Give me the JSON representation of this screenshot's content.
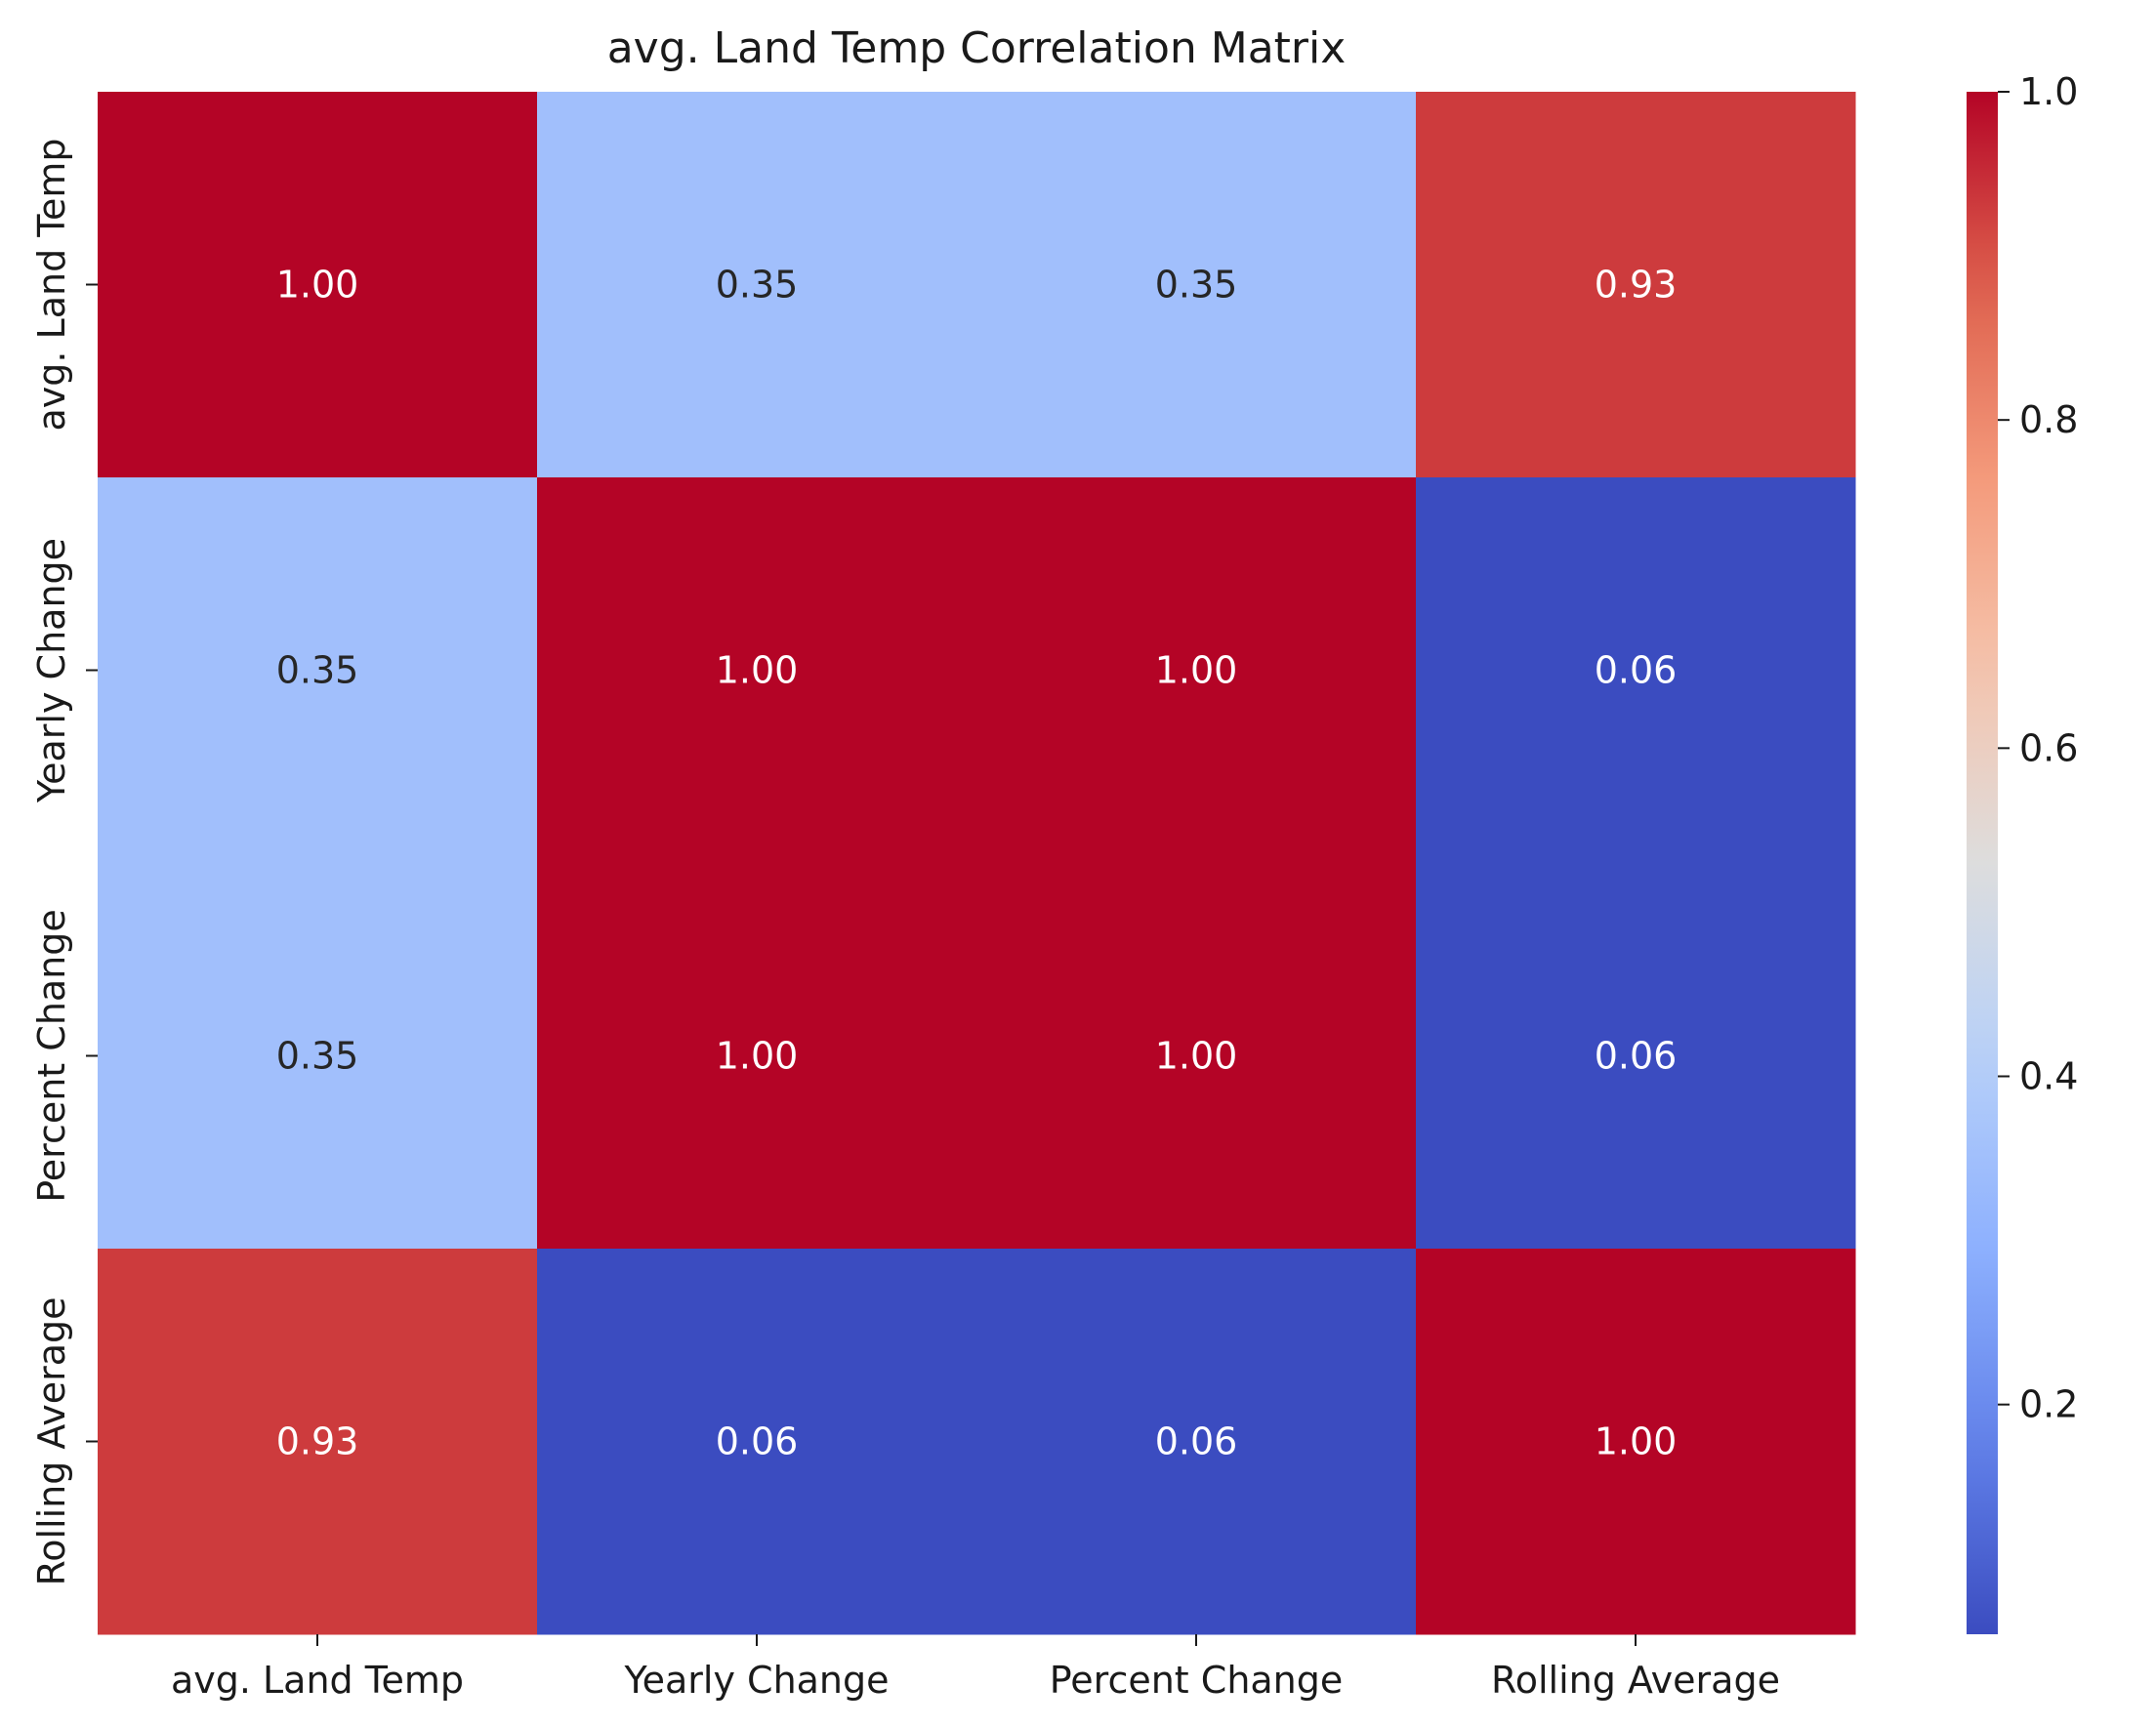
{
  "chart_data": {
    "type": "heatmap",
    "title": "avg. Land Temp Correlation Matrix",
    "xlabel": "",
    "ylabel": "",
    "x_labels": [
      "avg. Land Temp",
      "Yearly Change",
      "Percent Change",
      "Rolling Average"
    ],
    "y_labels": [
      "avg. Land Temp",
      "Yearly Change",
      "Percent Change",
      "Rolling Average"
    ],
    "values": [
      [
        1.0,
        0.35,
        0.35,
        0.93
      ],
      [
        0.35,
        1.0,
        1.0,
        0.06
      ],
      [
        0.35,
        1.0,
        1.0,
        0.06
      ],
      [
        0.93,
        0.06,
        0.06,
        1.0
      ]
    ],
    "annotations": [
      [
        "1.00",
        "0.35",
        "0.35",
        "0.93"
      ],
      [
        "0.35",
        "1.00",
        "1.00",
        "0.06"
      ],
      [
        "0.35",
        "1.00",
        "1.00",
        "0.06"
      ],
      [
        "0.93",
        "0.06",
        "0.06",
        "1.00"
      ]
    ],
    "colormap": "coolwarm",
    "colorbar": {
      "range": [
        0.06,
        1.0
      ],
      "ticks": [
        0.2,
        0.4,
        0.6,
        0.8,
        1.0
      ],
      "tick_labels": [
        "0.2",
        "0.4",
        "0.6",
        "0.8",
        "1.0"
      ],
      "position": "right"
    }
  }
}
